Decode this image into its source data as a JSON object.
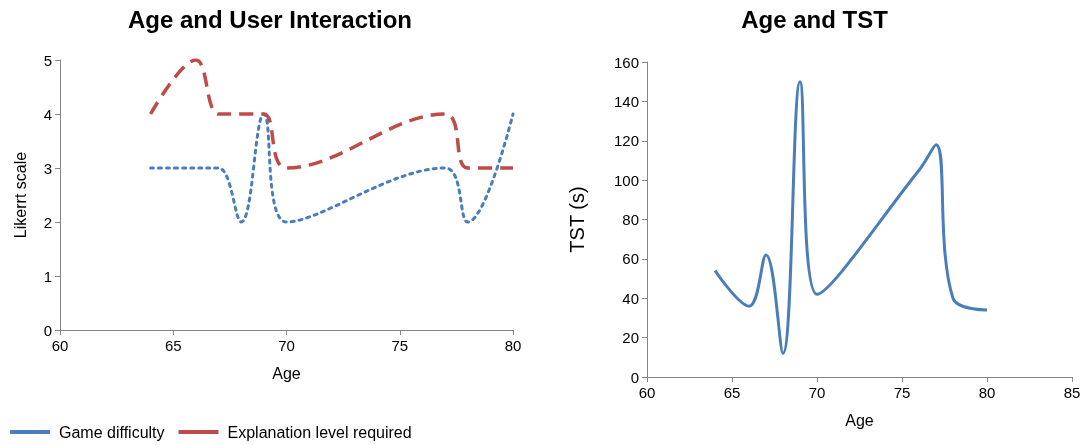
{
  "chart_data": [
    {
      "type": "line",
      "title": "Age and User Interaction",
      "xlabel": "Age",
      "ylabel": "Likerrt scale",
      "xlim": [
        60,
        80
      ],
      "xticks": [
        60,
        65,
        70,
        75,
        80
      ],
      "ylim": [
        0,
        5
      ],
      "yticks": [
        0,
        1,
        2,
        3,
        4,
        5
      ],
      "grid": false,
      "legend": "bottom",
      "marker": "none",
      "x": [
        64,
        66,
        67,
        68,
        69,
        70,
        77,
        78,
        80
      ],
      "series": [
        {
          "name": "Game difficulty",
          "color": "#4a7ebb",
          "line_style": "dotted",
          "values": [
            3,
            3,
            3,
            2,
            4,
            2,
            3,
            2,
            4
          ]
        },
        {
          "name": "Explanation level required",
          "color": "#be4b48",
          "line_style": "dashed",
          "values": [
            4,
            5,
            4,
            4,
            4,
            3,
            4,
            3,
            3
          ]
        }
      ]
    },
    {
      "type": "line",
      "title": "Age and TST",
      "xlabel": "Age",
      "ylabel": "TST (s)",
      "xlim": [
        60,
        85
      ],
      "xticks": [
        60,
        65,
        70,
        75,
        80,
        85
      ],
      "ylim": [
        0,
        160
      ],
      "yticks": [
        0,
        20,
        40,
        60,
        80,
        100,
        120,
        140,
        160
      ],
      "grid": false,
      "legend": false,
      "marker": "none",
      "line_style": "solid",
      "x": [
        64,
        66,
        67,
        68,
        69,
        70,
        76,
        77,
        78,
        80
      ],
      "series": [
        {
          "color": "#4a7ebb",
          "values": [
            54,
            36,
            62,
            12,
            150,
            42,
            105,
            118,
            40,
            34
          ]
        }
      ]
    }
  ]
}
